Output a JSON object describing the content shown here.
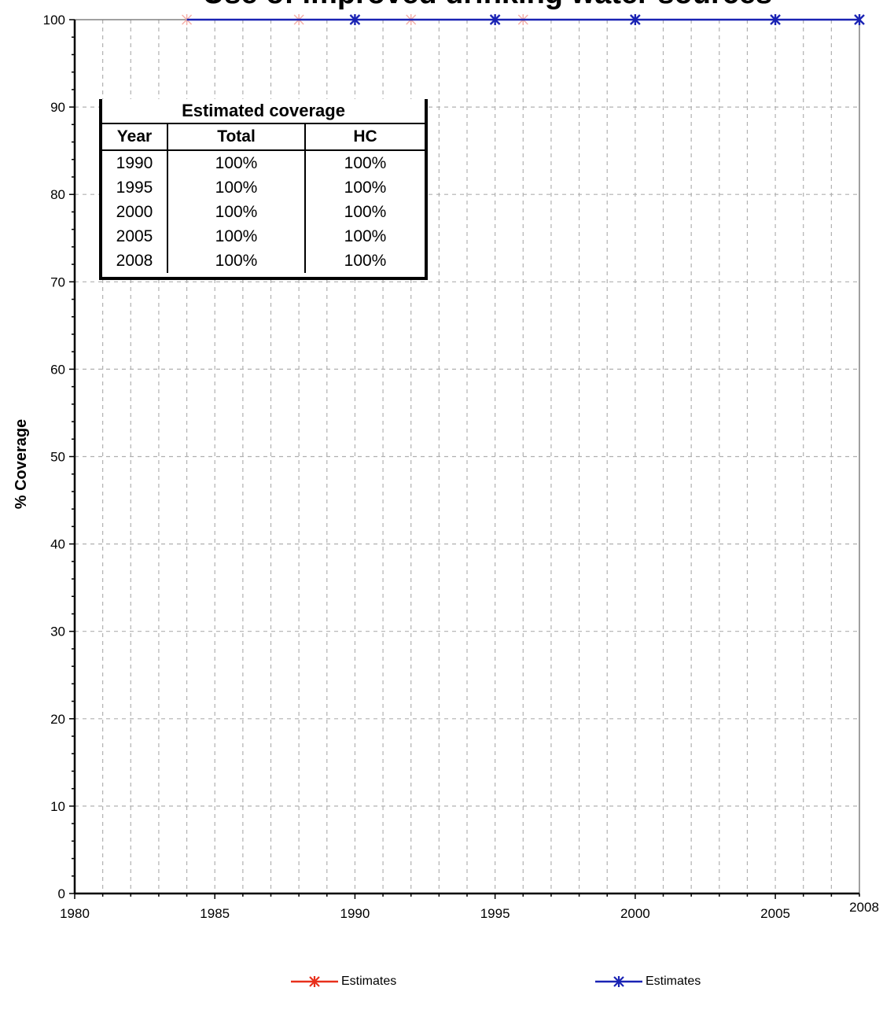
{
  "chart_data": {
    "type": "line",
    "title": "Use of improved drinking water sources",
    "xlabel": "",
    "ylabel": "% Coverage",
    "xlim": [
      1980,
      2008
    ],
    "ylim": [
      0,
      100
    ],
    "x_ticks": [
      "1980",
      "1985",
      "1990",
      "1995",
      "2000",
      "2005",
      "2008"
    ],
    "y_ticks": [
      "0",
      "10",
      "20",
      "30",
      "40",
      "50",
      "60",
      "70",
      "80",
      "90",
      "100"
    ],
    "grid": true,
    "series": [
      {
        "name": "Estimates",
        "color": "#e8301c",
        "marker": "asterisk",
        "x": [
          1984,
          1988,
          1992,
          1996
        ],
        "y": [
          100,
          100,
          100,
          100
        ]
      },
      {
        "name": "Estimates",
        "color": "#1a23b4",
        "marker": "asterisk",
        "x": [
          1990,
          1995,
          2000,
          2005,
          2008
        ],
        "y": [
          100,
          100,
          100,
          100,
          100
        ]
      }
    ],
    "legend_position": "bottom",
    "table": {
      "caption": "Estimated coverage",
      "headers": [
        "Year",
        "Total",
        "HC"
      ],
      "rows": [
        [
          "1990",
          "100%",
          "100%"
        ],
        [
          "1995",
          "100%",
          "100%"
        ],
        [
          "2000",
          "100%",
          "100%"
        ],
        [
          "2005",
          "100%",
          "100%"
        ],
        [
          "2008",
          "100%",
          "100%"
        ]
      ]
    }
  }
}
